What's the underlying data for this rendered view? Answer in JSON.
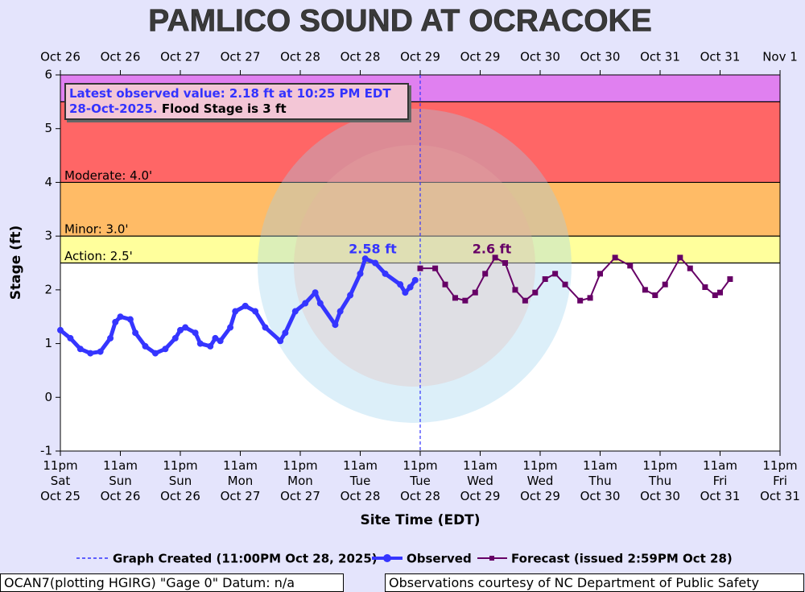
{
  "chart_data": {
    "type": "line",
    "title": "PAMLICO SOUND AT OCRACOKE",
    "ylabel": "Stage (ft)",
    "xlabel": "Site Time (EDT)",
    "xlim": [
      0,
      144
    ],
    "ylim": [
      -1,
      6
    ],
    "yticks": [
      -1,
      0,
      1,
      2,
      3,
      4,
      5,
      6
    ],
    "xticks": [
      {
        "value": 0,
        "label": "11pm\nSat\nOct 25"
      },
      {
        "value": 12,
        "label": "11am\nSun\nOct 26"
      },
      {
        "value": 24,
        "label": "11pm\nSun\nOct 26"
      },
      {
        "value": 36,
        "label": "11am\nMon\nOct 27"
      },
      {
        "value": 48,
        "label": "11pm\nMon\nOct 27"
      },
      {
        "value": 60,
        "label": "11am\nTue\nOct 28"
      },
      {
        "value": 72,
        "label": "11pm\nTue\nOct 28"
      },
      {
        "value": 84,
        "label": "11am\nWed\nOct 29"
      },
      {
        "value": 96,
        "label": "11pm\nWed\nOct 29"
      },
      {
        "value": 108,
        "label": "11am\nThu\nOct 30"
      },
      {
        "value": 120,
        "label": "11pm\nThu\nOct 30"
      },
      {
        "value": 132,
        "label": "11am\nFri\nOct 31"
      },
      {
        "value": 144,
        "label": "11pm\nFri\nOct 31"
      }
    ],
    "x2ticks": [
      {
        "value": 0,
        "label": "Oct 26"
      },
      {
        "value": 12,
        "label": "Oct 26"
      },
      {
        "value": 24,
        "label": "Oct 27"
      },
      {
        "value": 36,
        "label": "Oct 27"
      },
      {
        "value": 48,
        "label": "Oct 28"
      },
      {
        "value": 60,
        "label": "Oct 28"
      },
      {
        "value": 72,
        "label": "Oct 29"
      },
      {
        "value": 84,
        "label": "Oct 29"
      },
      {
        "value": 96,
        "label": "Oct 30"
      },
      {
        "value": 108,
        "label": "Oct 30"
      },
      {
        "value": 120,
        "label": "Oct 31"
      },
      {
        "value": 132,
        "label": "Oct 31"
      },
      {
        "value": 144,
        "label": "Nov 1"
      }
    ],
    "flood_bands": [
      {
        "value": 2.5,
        "label": "Action: 2.5'",
        "color": "#ffff9c"
      },
      {
        "value": 3,
        "label": "Minor: 3.0'",
        "color": "#ffbb66"
      },
      {
        "value": 4,
        "label": "Moderate: 4.0'",
        "color": "#ff6666"
      },
      {
        "value": 5.5,
        "color": "#e080f0"
      }
    ],
    "created_line": {
      "x": 72,
      "label": "Graph Created (11:00PM Oct 28, 2025)",
      "color": "#3333ff"
    },
    "series": [
      {
        "name": "Observed",
        "color": "#3535ff",
        "x": [
          0,
          2,
          4,
          6,
          8,
          10,
          11,
          12,
          14,
          15,
          17,
          19,
          21,
          23,
          24,
          25,
          27,
          28,
          30,
          31,
          32,
          34,
          35,
          37,
          39,
          41,
          44,
          45,
          47,
          49,
          51,
          52,
          55,
          56,
          58,
          60,
          61,
          63,
          65,
          68,
          69,
          70,
          71
        ],
        "values": [
          1.25,
          1.1,
          0.9,
          0.82,
          0.85,
          1.1,
          1.4,
          1.5,
          1.45,
          1.2,
          0.95,
          0.82,
          0.9,
          1.1,
          1.25,
          1.3,
          1.2,
          1.0,
          0.95,
          1.1,
          1.05,
          1.3,
          1.6,
          1.7,
          1.6,
          1.3,
          1.05,
          1.2,
          1.6,
          1.75,
          1.95,
          1.75,
          1.35,
          1.6,
          1.9,
          2.3,
          2.58,
          2.5,
          2.3,
          2.1,
          1.95,
          2.05,
          2.18
        ]
      },
      {
        "name": "Forecast (issued 2:59PM Oct 28)",
        "color": "#660066",
        "x": [
          72,
          75,
          77,
          79,
          81,
          83,
          85,
          87,
          89,
          91,
          93,
          95,
          97,
          99,
          101,
          104,
          106,
          108,
          111,
          114,
          117,
          119,
          121,
          124,
          126,
          129,
          131,
          132,
          134
        ],
        "values": [
          2.4,
          2.4,
          2.1,
          1.85,
          1.8,
          1.95,
          2.3,
          2.6,
          2.5,
          2.0,
          1.8,
          1.95,
          2.2,
          2.3,
          2.1,
          1.8,
          1.85,
          2.3,
          2.6,
          2.45,
          2.0,
          1.9,
          2.1,
          2.6,
          2.4,
          2.05,
          1.9,
          1.95,
          2.2
        ]
      }
    ],
    "peak_labels": [
      "2.58 ft",
      "2.6 ft"
    ],
    "latest_text": "Latest observed value: 2.18 ft at 10:25 PM EDT 28-Oct-2025.",
    "flood_stage_text": "Flood Stage is 3 ft",
    "footer_left": "OCAN7(plotting HGIRG) \"Gage 0\" Datum: n/a",
    "footer_right": "Observations courtesy of NC Department of Public Safety"
  }
}
